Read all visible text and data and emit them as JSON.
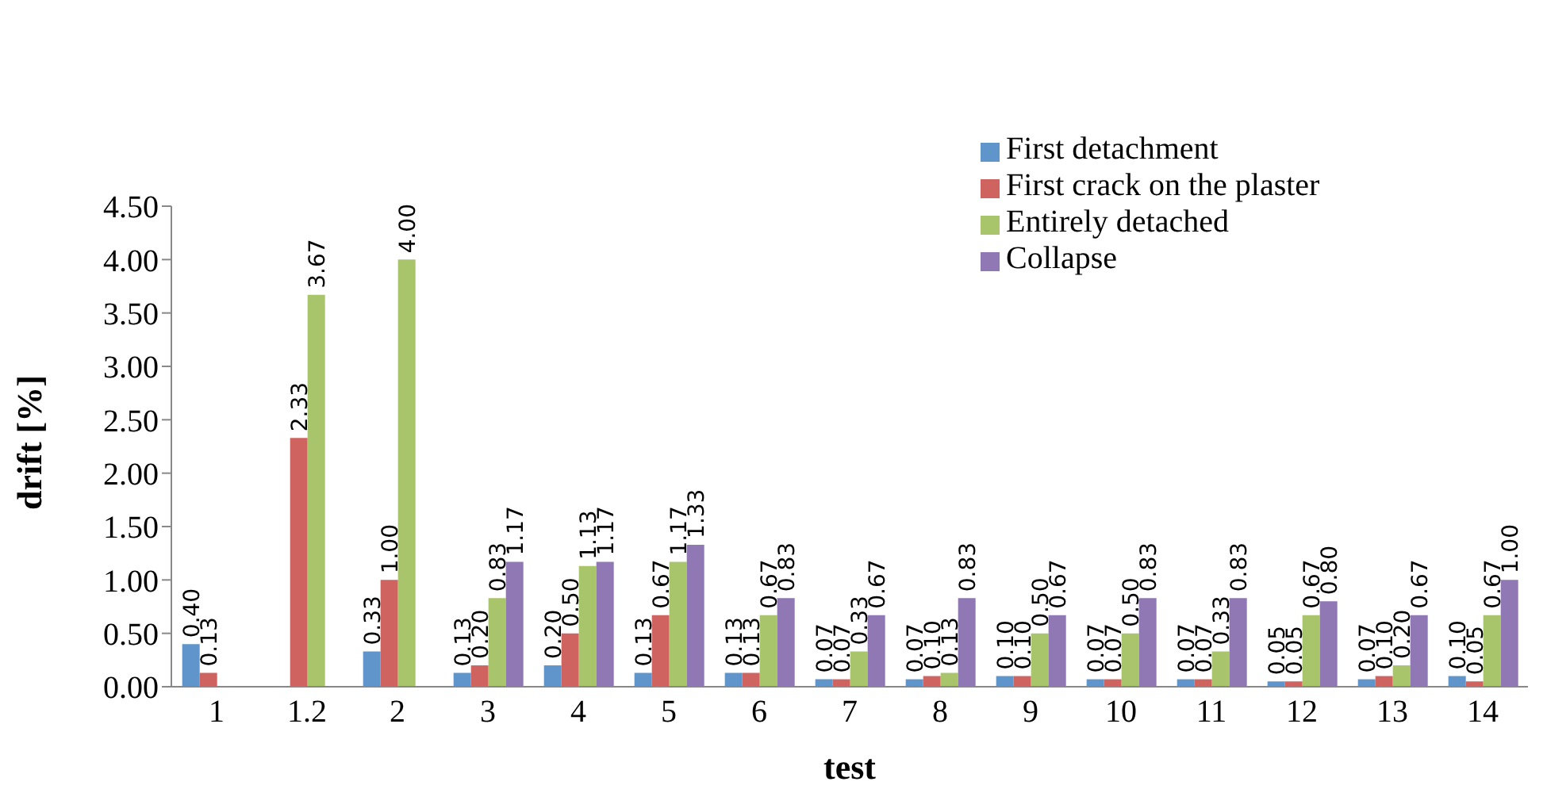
{
  "chart_data": {
    "type": "bar",
    "xlabel": "test",
    "ylabel": "drift [%]",
    "categories": [
      "1",
      "1.2",
      "2",
      "3",
      "4",
      "5",
      "6",
      "7",
      "8",
      "9",
      "10",
      "11",
      "12",
      "13",
      "14"
    ],
    "series": [
      {
        "name": "First detachment",
        "color": "#5f95cb",
        "values": [
          0.4,
          null,
          0.33,
          0.13,
          0.2,
          0.13,
          0.13,
          0.07,
          0.07,
          0.1,
          0.07,
          0.07,
          0.05,
          0.07,
          0.1
        ],
        "value_labels": [
          "0.40",
          null,
          "0.33",
          "0.13",
          "0.20",
          "0.13",
          "0.13",
          "0.07",
          "0.07",
          "0.10",
          "0.07",
          "0.07",
          "0.05",
          "0.07",
          "0.10"
        ]
      },
      {
        "name": "First crack on the plaster",
        "color": "#cf6360",
        "values": [
          0.13,
          2.33,
          1.0,
          0.2,
          0.5,
          0.67,
          0.13,
          0.07,
          0.1,
          0.1,
          0.07,
          0.07,
          0.05,
          0.1,
          0.05
        ],
        "value_labels": [
          "0.13",
          "2.33",
          "1.00",
          "0.20",
          "0.50",
          "0.67",
          "0.13",
          "0.07",
          "0.10",
          "0.10",
          "0.07",
          "0.07",
          "0.05",
          "0.10",
          "0.05"
        ]
      },
      {
        "name": "Entirely detached",
        "color": "#a8c56b",
        "values": [
          null,
          3.67,
          4.0,
          0.83,
          1.13,
          1.17,
          0.67,
          0.33,
          0.13,
          0.5,
          0.5,
          0.33,
          0.67,
          0.2,
          0.67
        ],
        "value_labels": [
          null,
          "3.67",
          "4.00",
          "0.83",
          "1.13",
          "1.17",
          "0.67",
          "0.33",
          "0.13",
          "0.50",
          "0.50",
          "0.33",
          "0.67",
          "0.20",
          "0.67"
        ]
      },
      {
        "name": "Collapse",
        "color": "#8f78b4",
        "values": [
          null,
          null,
          null,
          1.17,
          1.17,
          1.33,
          0.83,
          0.67,
          0.83,
          0.67,
          0.83,
          0.83,
          0.8,
          0.67,
          1.0
        ],
        "value_labels": [
          null,
          null,
          null,
          "1.17",
          "1.17",
          "1.33",
          "0.83",
          "0.67",
          "0.83",
          "0.67",
          "0.83",
          "0.83",
          "0.80",
          "0.67",
          "1.00"
        ]
      }
    ],
    "ylim": [
      0,
      4.5
    ],
    "yticks": [
      {
        "value": 0,
        "label": "0.00"
      },
      {
        "value": 0.5,
        "label": "0.50"
      },
      {
        "value": 1,
        "label": "1.00"
      },
      {
        "value": 1.5,
        "label": "1.50"
      },
      {
        "value": 2,
        "label": "2.00"
      },
      {
        "value": 2.5,
        "label": "2.50"
      },
      {
        "value": 3,
        "label": "3.00"
      },
      {
        "value": 3.5,
        "label": "3.50"
      },
      {
        "value": 4,
        "label": "4.00"
      },
      {
        "value": 4.5,
        "label": "4.50"
      }
    ],
    "legend": "top right"
  }
}
